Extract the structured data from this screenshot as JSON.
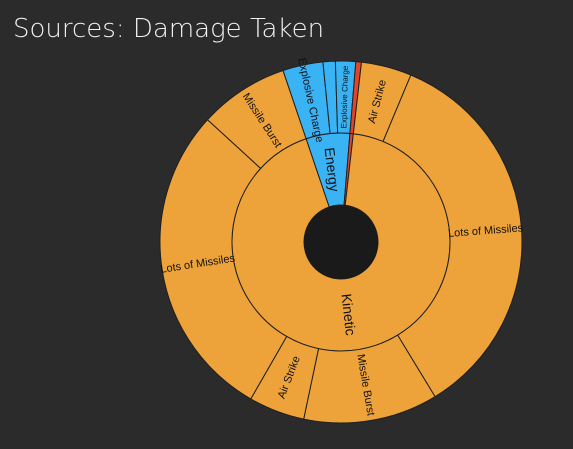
{
  "chart_data": {
    "type": "sunburst",
    "title": "Sources: Damage Taken",
    "colors": {
      "background": "#2b2b2b",
      "kinetic": "#eea33a",
      "energy": "#3ab3f5",
      "other": "#e0452a",
      "stroke": "#1f1f1f",
      "hole": "#1a1a1a",
      "title": "#f2f2f2"
    },
    "inner_ring": [
      {
        "name": "Energy",
        "value": 6.5,
        "color_key": "energy"
      },
      {
        "name": "",
        "value": 0.5,
        "color_key": "other"
      },
      {
        "name": "Kinetic",
        "value": 93.0,
        "color_key": "kinetic"
      }
    ],
    "outer_ring": [
      {
        "name": "Explosive Charge",
        "parent": "Energy",
        "value": 3.6,
        "color_key": "energy"
      },
      {
        "name": "",
        "parent": "Energy",
        "value": 1.1,
        "color_key": "energy"
      },
      {
        "name": "Explosive Charge",
        "parent": "Energy",
        "value": 1.8,
        "color_key": "energy"
      },
      {
        "name": "",
        "parent": "",
        "value": 0.5,
        "color_key": "other"
      },
      {
        "name": "Air Strike",
        "parent": "Kinetic",
        "value": 4.5,
        "color_key": "kinetic"
      },
      {
        "name": "Lots of Missiles",
        "parent": "Kinetic",
        "value": 35.0,
        "color_key": "kinetic"
      },
      {
        "name": "Missile Burst",
        "parent": "Kinetic",
        "value": 12.0,
        "color_key": "kinetic"
      },
      {
        "name": "Air Strike",
        "parent": "Kinetic",
        "value": 5.0,
        "color_key": "kinetic"
      },
      {
        "name": "Lots of Missiles",
        "parent": "Kinetic",
        "value": 28.5,
        "color_key": "kinetic"
      },
      {
        "name": "Missile Burst",
        "parent": "Kinetic",
        "value": 8.0,
        "color_key": "kinetic"
      }
    ]
  }
}
